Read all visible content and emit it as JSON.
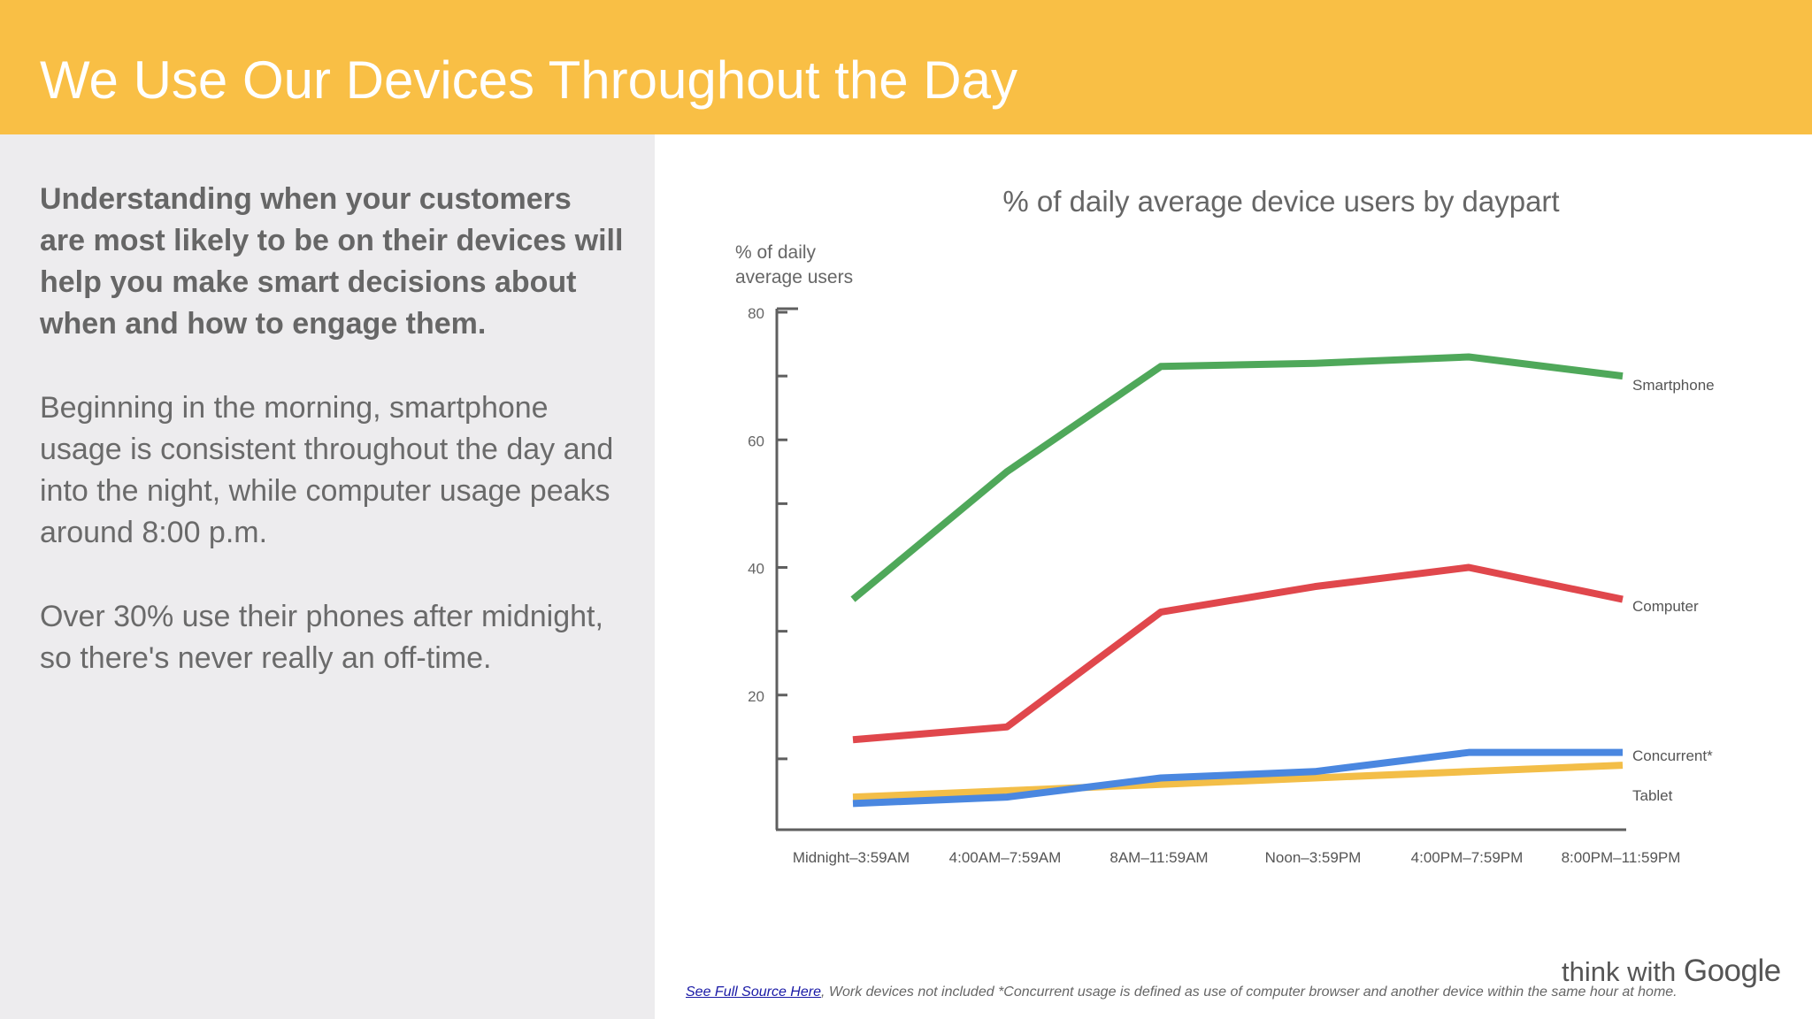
{
  "header": {
    "title": "We Use Our Devices Throughout the Day"
  },
  "left_panel": {
    "lead": "Understanding when your customers are most likely to be on their devices will help you make smart decisions about when and how to engage them.",
    "paragraph_1": "Beginning in the morning, smartphone usage is consistent throughout the day and into the night, while computer usage peaks around 8:00 p.m.",
    "paragraph_2": "Over 30% use their phones after midnight, so there's never really an off-time."
  },
  "chart_data": {
    "type": "line",
    "title": "% of daily average device users by daypart",
    "ylabel": "% of daily average users",
    "xlabel": "",
    "ylim": [
      0,
      80
    ],
    "yticks": [
      20,
      40,
      60,
      80
    ],
    "grid": false,
    "legend": "direct labels at right end of lines",
    "categories": [
      "Midnight–3:59AM",
      "4:00AM–7:59AM",
      "8AM–11:59AM",
      "Noon–3:59PM",
      "4:00PM–7:59PM",
      "8:00PM–11:59PM"
    ],
    "series": [
      {
        "name": "Smartphone",
        "color": "#4FA85A",
        "values": [
          35,
          55,
          71.5,
          72,
          73,
          70
        ]
      },
      {
        "name": "Computer",
        "color": "#E0474C",
        "values": [
          13,
          15,
          33,
          37,
          40,
          35
        ]
      },
      {
        "name": "Tablet",
        "color": "#F3BE48",
        "values": [
          4,
          5,
          6,
          7,
          8,
          9
        ]
      },
      {
        "name": "Concurrent*",
        "color": "#4A87E0",
        "values": [
          3,
          4,
          7,
          8,
          11,
          11
        ]
      }
    ]
  },
  "footnote": {
    "link": "See Full Source Here",
    "text": ", Work devices not included *Concurrent usage is defined as use of computer browser and another device within the same hour at home."
  },
  "logo": {
    "prefix": "think with",
    "brand": "Google"
  }
}
